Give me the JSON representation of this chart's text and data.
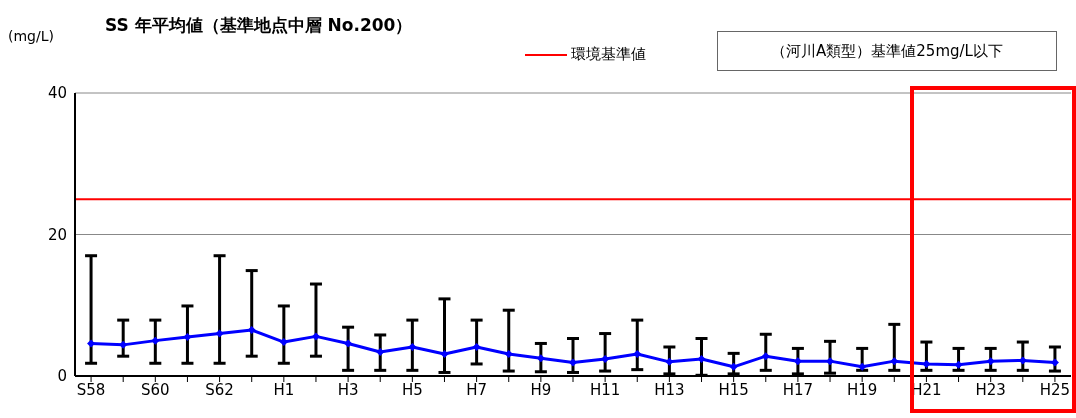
{
  "chart_data": {
    "type": "line",
    "title": "SS 年平均値（基準地点中層 No.200）",
    "ylabel": "(mg/L)",
    "categories": [
      "S58",
      null,
      "S60",
      null,
      "S62",
      null,
      "H1",
      null,
      "H3",
      null,
      "H5",
      null,
      "H7",
      null,
      "H9",
      null,
      "H11",
      null,
      "H13",
      null,
      "H15",
      null,
      "H17",
      null,
      "H19",
      null,
      "H21",
      null,
      "H23",
      null,
      "H25"
    ],
    "series": [
      {
        "color": "#0000ff",
        "values": [
          4.6,
          4.4,
          5.0,
          5.5,
          6.0,
          6.5,
          4.8,
          5.6,
          4.6,
          3.4,
          4.1,
          3.1,
          4.1,
          3.1,
          2.5,
          1.9,
          2.4,
          3.1,
          2.0,
          2.4,
          1.3,
          2.8,
          2.1,
          2.1,
          1.3,
          2.1,
          1.7,
          1.6,
          2.1,
          2.2,
          1.9
        ],
        "errors": [
          [
            1.8,
            17.0
          ],
          [
            2.8,
            7.9
          ],
          [
            1.8,
            7.9
          ],
          [
            1.8,
            9.9
          ],
          [
            1.8,
            17.0
          ],
          [
            2.8,
            14.9
          ],
          [
            1.8,
            9.9
          ],
          [
            2.8,
            13.0
          ],
          [
            0.8,
            6.9
          ],
          [
            0.8,
            5.8
          ],
          [
            0.8,
            7.9
          ],
          [
            0.5,
            10.9
          ],
          [
            1.7,
            7.9
          ],
          [
            0.7,
            9.3
          ],
          [
            0.6,
            4.6
          ],
          [
            0.5,
            5.3
          ],
          [
            0.7,
            6.0
          ],
          [
            0.9,
            7.9
          ],
          [
            0.3,
            4.1
          ],
          [
            0.1,
            5.3
          ],
          [
            0.3,
            3.2
          ],
          [
            0.8,
            5.9
          ],
          [
            0.3,
            3.9
          ],
          [
            0.4,
            4.9
          ],
          [
            0.8,
            3.9
          ],
          [
            0.8,
            7.3
          ],
          [
            0.8,
            4.8
          ],
          [
            0.8,
            3.9
          ],
          [
            0.8,
            3.9
          ],
          [
            0.8,
            4.8
          ],
          [
            0.7,
            4.1
          ]
        ]
      }
    ],
    "ylim": [
      0,
      40
    ],
    "yticks": [
      0,
      20,
      40
    ],
    "grid": "y",
    "marker": "diamond",
    "line_style": "solid",
    "legend": "top right",
    "ref_lines": [
      {
        "axis": "y",
        "value": 25,
        "label": "環境基準値",
        "color": "#ff0000"
      }
    ],
    "annotations": [
      "（河川A類型）基準値25mg/L以下"
    ]
  }
}
